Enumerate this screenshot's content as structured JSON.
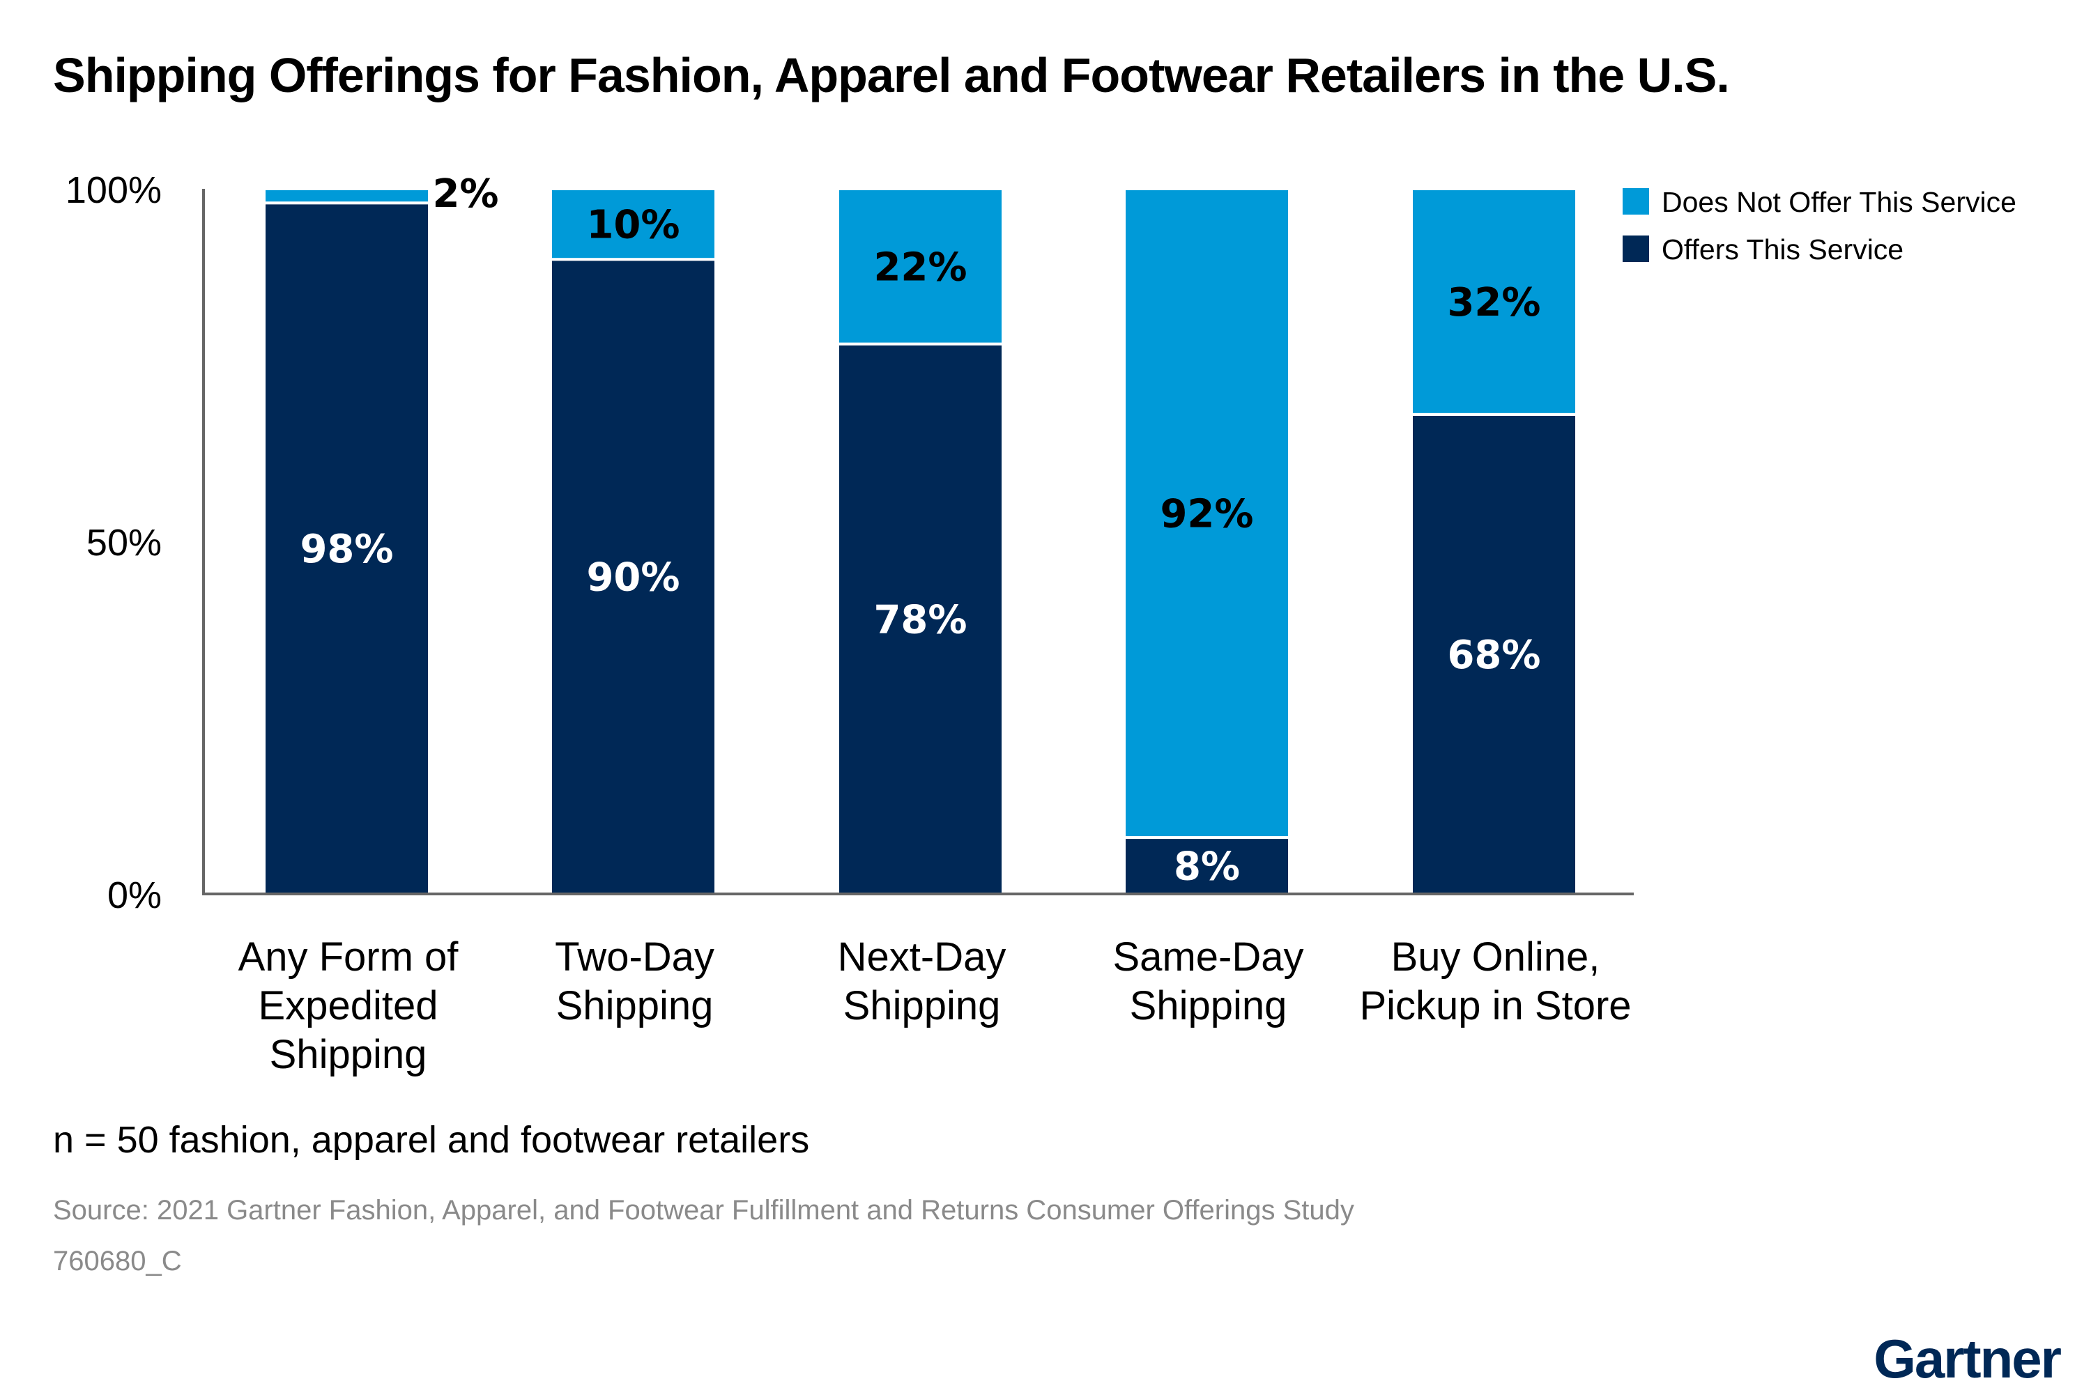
{
  "chart_data": {
    "type": "bar",
    "stacked": true,
    "title": "Shipping Offerings for Fashion, Apparel and Footwear Retailers in the U.S.",
    "categories": [
      [
        "Any Form of",
        "Expedited",
        "Shipping"
      ],
      [
        "Two-Day",
        "Shipping"
      ],
      [
        "Next-Day",
        "Shipping"
      ],
      [
        "Same-Day",
        "Shipping"
      ],
      [
        "Buy Online,",
        "Pickup in Store"
      ]
    ],
    "series": [
      {
        "name": "Offers This Service",
        "color": "#002856",
        "values": [
          98,
          90,
          78,
          8,
          68
        ],
        "labels": [
          "98%",
          "90%",
          "78%",
          "8%",
          "68%"
        ]
      },
      {
        "name": "Does Not Offer This Service",
        "color": "#009ad8",
        "values": [
          2,
          10,
          22,
          92,
          32
        ],
        "labels": [
          "2%",
          "10%",
          "22%",
          "92%",
          "32%"
        ]
      }
    ],
    "yticks": [
      "0%",
      "50%",
      "100%"
    ],
    "ylim": [
      0,
      100
    ],
    "grid": false,
    "legend_position": "top-right",
    "xlabel": "",
    "ylabel": ""
  },
  "note": "n = 50 fashion, apparel and footwear retailers",
  "source": "Source: 2021 Gartner Fashion, Apparel, and Footwear Fulfillment and Returns Consumer Offerings Study",
  "code": "760680_C",
  "logo": "Gartner"
}
